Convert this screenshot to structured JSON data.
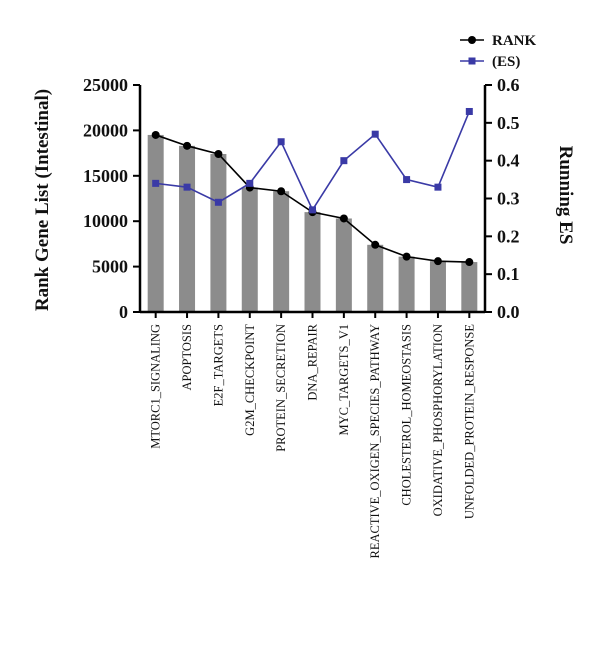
{
  "chart_data": {
    "type": "bar",
    "categories": [
      "MTORC1_SIGNALING",
      "APOPTOSIS",
      "E2F_TARGETS",
      "G2M_CHECKPOINT",
      "PROTEIN_SECRETION",
      "DNA_REPAIR",
      "MYC_TARGETS_V1",
      "REACTIVE_OXIGEN_SPECIES_PATHWAY",
      "CHOLESTEROL_HOMEOSTASIS",
      "OXIDATIVE_PHOSPHORYLATION",
      "UNFOLDED_PROTEIN_RESPONSE"
    ],
    "series": [
      {
        "name": "RANK",
        "type": "bar+line",
        "axis": "left",
        "values": [
          19500,
          18300,
          17400,
          13700,
          13300,
          11000,
          10300,
          7400,
          6100,
          5600,
          5500
        ],
        "color": "#8c8c8c",
        "line_color": "#000000"
      },
      {
        "name": "(ES)",
        "type": "line",
        "axis": "right",
        "values": [
          0.34,
          0.33,
          0.29,
          0.34,
          0.45,
          0.27,
          0.4,
          0.47,
          0.35,
          0.33,
          0.53
        ],
        "color": "#3a3aa6"
      }
    ],
    "ylabel": "Rank Gene List (Intestinal)",
    "ylabel_right": "Running ES",
    "ylim": [
      0,
      25000
    ],
    "ylim_right": [
      0,
      0.6
    ],
    "yticks": [
      "0",
      "5000",
      "10000",
      "15000",
      "20000",
      "25000"
    ],
    "yticks_right": [
      "0.0",
      "0.1",
      "0.2",
      "0.3",
      "0.4",
      "0.5",
      "0.6"
    ],
    "legend": {
      "position": "top-right",
      "entries": [
        "RANK",
        "(ES)"
      ]
    },
    "grid": false
  }
}
